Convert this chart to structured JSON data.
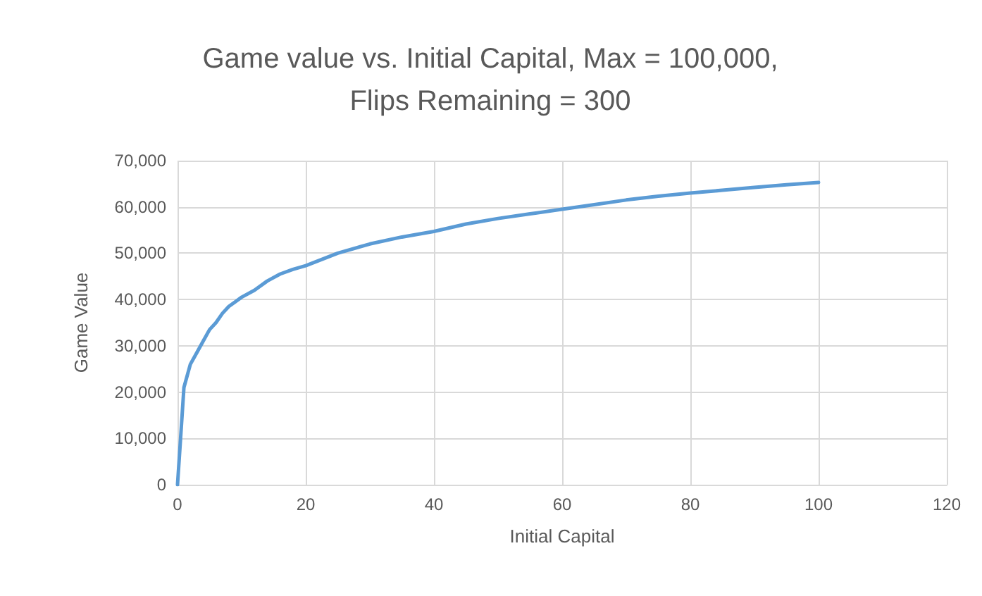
{
  "chart_data": {
    "type": "line",
    "title": "Game value vs. Initial Capital, Max = 100,000,\nFlips Remaining = 300",
    "xlabel": "Initial Capital",
    "ylabel": "Game Value",
    "x": [
      0,
      1,
      2,
      3,
      4,
      5,
      6,
      7,
      8,
      9,
      10,
      12,
      14,
      16,
      18,
      20,
      25,
      30,
      35,
      40,
      45,
      50,
      55,
      60,
      65,
      70,
      75,
      80,
      85,
      90,
      95,
      100
    ],
    "series": [
      {
        "color": "#5b9bd5",
        "values": [
          0,
          21000,
          26000,
          28500,
          31000,
          33500,
          35000,
          37000,
          38500,
          39500,
          40500,
          42000,
          44000,
          45500,
          46500,
          47300,
          50000,
          52000,
          53500,
          54700,
          56300,
          57500,
          58500,
          59500,
          60500,
          61500,
          62300,
          63000,
          63600,
          64200,
          64800,
          65300
        ]
      }
    ],
    "xlim": [
      0,
      120
    ],
    "xticks": [
      0,
      20,
      40,
      60,
      80,
      100,
      120
    ],
    "ylim": [
      0,
      70000
    ],
    "yticks": [
      0,
      {
        "value": 10000,
        "label": "10,000"
      },
      {
        "value": 20000,
        "label": "20,000"
      },
      {
        "value": 30000,
        "label": "30,000"
      },
      {
        "value": 40000,
        "label": "40,000"
      },
      {
        "value": 50000,
        "label": "50,000"
      },
      {
        "value": 60000,
        "label": "60,000"
      },
      {
        "value": 70000,
        "label": "70,000"
      }
    ],
    "grid": true,
    "marker": "none",
    "line_style": "solid"
  }
}
